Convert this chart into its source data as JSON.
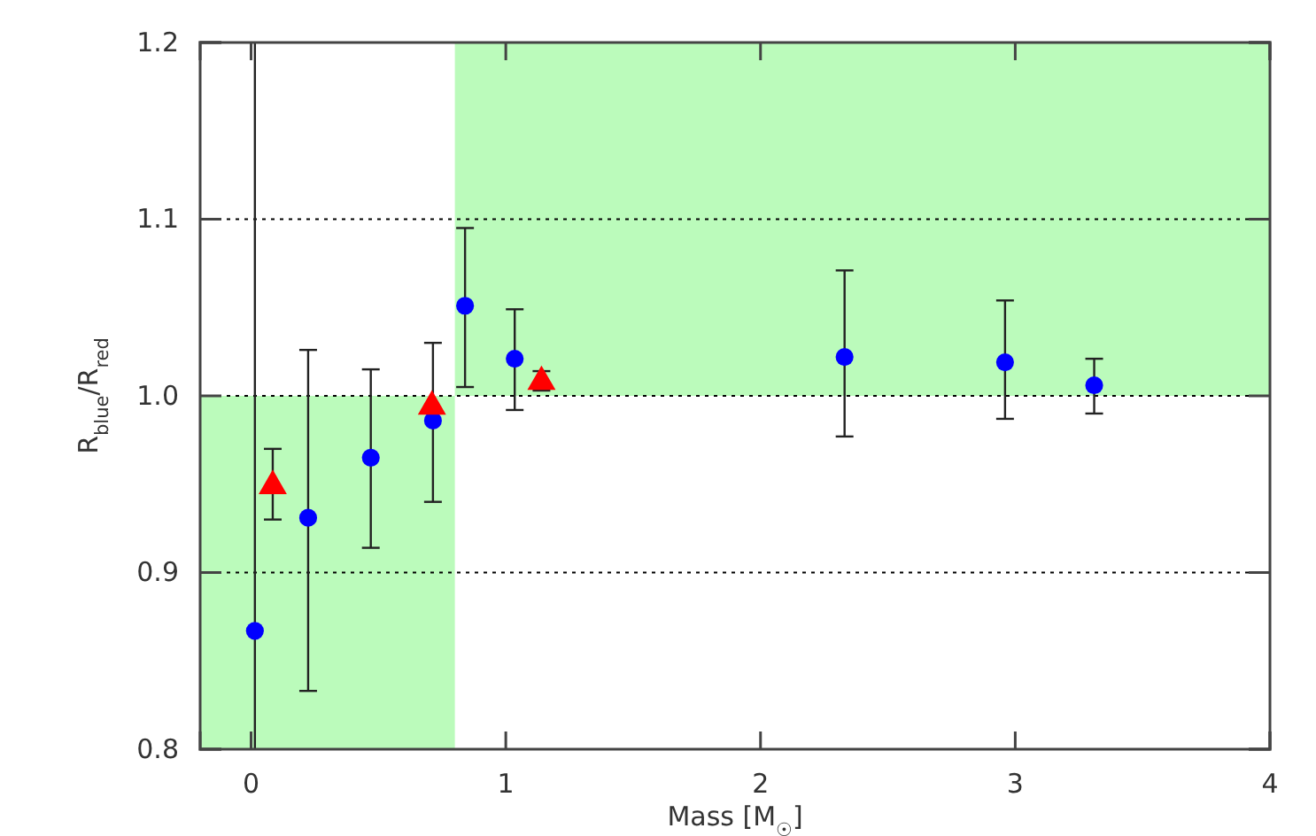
{
  "chart_data": {
    "type": "scatter",
    "xlabel": "Mass [M$_{☉}$]",
    "ylabel": "R$_{blue}$/R$_{red}$",
    "xlim": [
      -0.2,
      4
    ],
    "ylim": [
      0.8,
      1.2
    ],
    "xticks": [
      0,
      1,
      2,
      3,
      4
    ],
    "yticks": [
      {
        "value": 0.8,
        "label": "0.8"
      },
      {
        "value": 0.9,
        "label": "0.9"
      },
      {
        "value": 1.0,
        "label": "1.0"
      },
      {
        "value": 1.1,
        "label": "1.1"
      },
      {
        "value": 1.2,
        "label": "1.2"
      }
    ],
    "grid": "y",
    "line_style": "dotted",
    "series": [
      {
        "type": "area",
        "color": "#bbfbbb",
        "x": [
          -0.2,
          0.8
        ],
        "values": [
          null,
          null
        ],
        "lower": [
          0.8,
          0.8
        ],
        "upper": [
          1.0,
          1.0
        ]
      },
      {
        "type": "area",
        "color": "#bbfbbb",
        "x": [
          0.8,
          4
        ],
        "values": [
          null,
          null
        ],
        "lower": [
          1.0,
          1.0
        ],
        "upper": [
          1.2,
          1.2
        ]
      },
      {
        "marker": "circle",
        "color": "#0000ff",
        "x": [
          0.015,
          0.224,
          0.47,
          0.714,
          0.84,
          1.035,
          2.33,
          2.96,
          3.31
        ],
        "values": [
          0.867,
          0.931,
          0.965,
          0.986,
          1.051,
          1.021,
          1.022,
          1.019,
          1.006
        ],
        "errors": [
          [
            0.8,
            1.2
          ],
          [
            0.833,
            1.026
          ],
          [
            0.914,
            1.015
          ],
          [
            0.94,
            1.03
          ],
          [
            1.005,
            1.095
          ],
          [
            0.992,
            1.049
          ],
          [
            0.977,
            1.071
          ],
          [
            0.987,
            1.054
          ],
          [
            0.99,
            1.021
          ]
        ]
      },
      {
        "marker": "triangle",
        "color": "#ff0000",
        "x": [
          0.085,
          0.71,
          1.14
        ],
        "values": [
          0.949,
          0.994,
          1.008
        ],
        "errors": [
          [
            0.93,
            0.97
          ],
          null,
          [
            1.003,
            1.014
          ]
        ]
      }
    ]
  }
}
